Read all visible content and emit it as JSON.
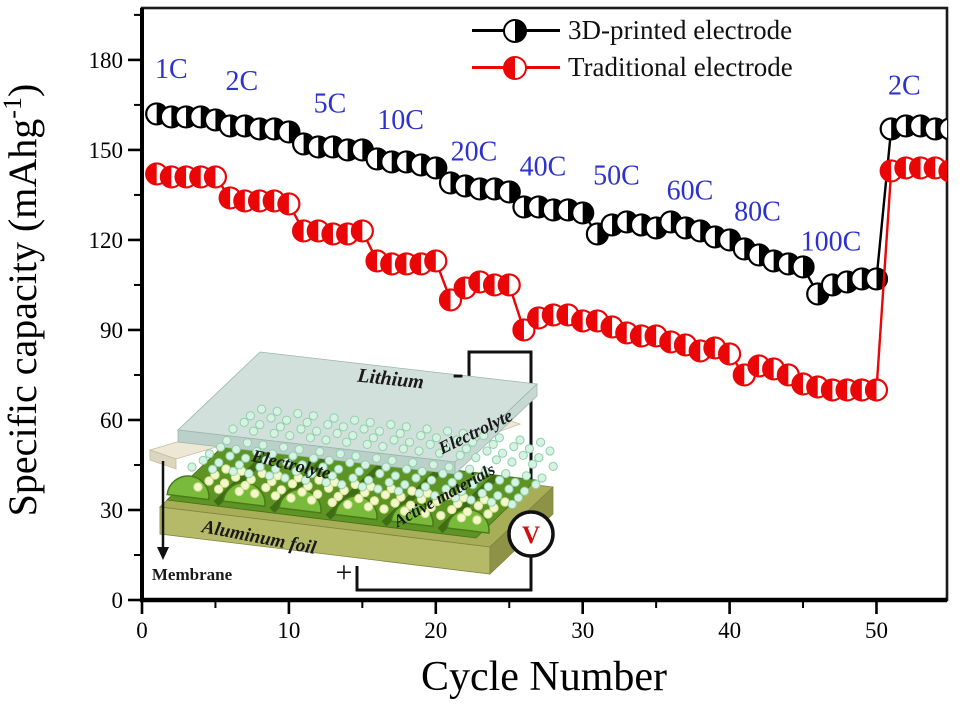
{
  "figure": {
    "xlabel": "Cycle Number",
    "ylabel_full": "Specific capacity (mAhg-1)",
    "ylabel_main": "Specific capacity (mAhg",
    "ylabel_sup": "-1",
    "ylabel_end": ")"
  },
  "chart_data": {
    "type": "scatter",
    "title": "",
    "xlabel": "Cycle Number",
    "ylabel": "Specific capacity (mAhg^-1)",
    "xlim": [
      0,
      54.8
    ],
    "ylim": [
      0,
      197.3
    ],
    "x_ticks": [
      0,
      10,
      20,
      30,
      40,
      50
    ],
    "y_ticks": [
      0,
      30,
      60,
      90,
      120,
      150,
      180
    ],
    "x_minor_step": 5,
    "y_minor_step": 15,
    "grid": false,
    "legend_position": "top-center",
    "annotation_color": "#2d32cf",
    "x": [
      1,
      2,
      3,
      4,
      5,
      6,
      7,
      8,
      9,
      10,
      11,
      12,
      13,
      14,
      15,
      16,
      17,
      18,
      19,
      20,
      21,
      22,
      23,
      24,
      25,
      26,
      27,
      28,
      29,
      30,
      31,
      32,
      33,
      34,
      35,
      36,
      37,
      38,
      39,
      40,
      41,
      42,
      43,
      44,
      45,
      46,
      47,
      48,
      49,
      50,
      51,
      52,
      53,
      54,
      55
    ],
    "series": [
      {
        "name": "3D-printed electrode",
        "color": "#000000",
        "marker": "half-filled-circle",
        "marker_fill_side": "right",
        "values": [
          162,
          161,
          161,
          161,
          160,
          158,
          158,
          157,
          157,
          156,
          152,
          151,
          151,
          150,
          150,
          147,
          146,
          146,
          145,
          144,
          139,
          138,
          137,
          137,
          136,
          131,
          131,
          130,
          130,
          129,
          122,
          125,
          126,
          125,
          124,
          126,
          124,
          123,
          121,
          120,
          117,
          115,
          113,
          112,
          111,
          102,
          105,
          106,
          107,
          107,
          157,
          158,
          158,
          157,
          157
        ]
      },
      {
        "name": "Traditional electrode",
        "color": "#ea0606",
        "marker": "half-filled-circle",
        "marker_fill_side": "left",
        "values": [
          142,
          141,
          141,
          141,
          141,
          134,
          133,
          133,
          133,
          132,
          123,
          123,
          122,
          122,
          123,
          113,
          112,
          112,
          112,
          113,
          100,
          104,
          106,
          105,
          105,
          90,
          94,
          95,
          95,
          93,
          93,
          91,
          89,
          88,
          88,
          86,
          85,
          83,
          84,
          82,
          75,
          78,
          77,
          75,
          72,
          71,
          70,
          70,
          70,
          70,
          143,
          144,
          144,
          144,
          143
        ]
      }
    ],
    "rate_labels": [
      {
        "text": "1C",
        "cycle": 2.0,
        "capacity": 174.0
      },
      {
        "text": "2C",
        "cycle": 6.8,
        "capacity": 170.0
      },
      {
        "text": "5C",
        "cycle": 12.8,
        "capacity": 162.5
      },
      {
        "text": "10C",
        "cycle": 17.6,
        "capacity": 157.0
      },
      {
        "text": "20C",
        "cycle": 22.6,
        "capacity": 146.5
      },
      {
        "text": "40C",
        "cycle": 27.3,
        "capacity": 141.5
      },
      {
        "text": "50C",
        "cycle": 32.3,
        "capacity": 138.5
      },
      {
        "text": "60C",
        "cycle": 37.3,
        "capacity": 133.5
      },
      {
        "text": "80C",
        "cycle": 41.9,
        "capacity": 126.5
      },
      {
        "text": "100C",
        "cycle": 46.9,
        "capacity": 116.5
      },
      {
        "text": "2C",
        "cycle": 51.9,
        "capacity": 168.5
      }
    ]
  },
  "inset": {
    "labels": {
      "lithium": "Lithium",
      "electrolyte_left": "Electrolyte",
      "electrolyte_right": "Electrolyte",
      "membrane": "Membrane",
      "aluminum_foil": "Aluminum foil",
      "active_materials": "Active materials",
      "plus": "+",
      "minus": "-",
      "voltmeter": "V"
    },
    "colors": {
      "lithium_slab": "#d2e0db",
      "separator": "#ece8d4",
      "active_green": "#79ba3a",
      "foil_olive": "#a8ad57",
      "dot_mint": "#d7f2e2",
      "dot_yellow": "#f3f7cb",
      "voltmeter_v": "#cc1111"
    }
  }
}
